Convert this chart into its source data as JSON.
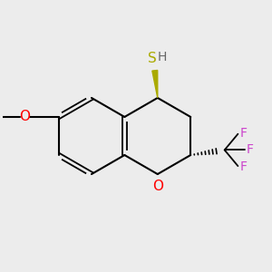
{
  "bg_color": "#ececec",
  "atom_colors": {
    "O_ring": "#ff0000",
    "O_methoxy": "#ff0000",
    "S": "#aaaa00",
    "H": "#666666",
    "F": "#cc44cc",
    "bond": "#000000"
  },
  "font_size": 11,
  "figsize": [
    3.0,
    3.0
  ],
  "dpi": 100
}
